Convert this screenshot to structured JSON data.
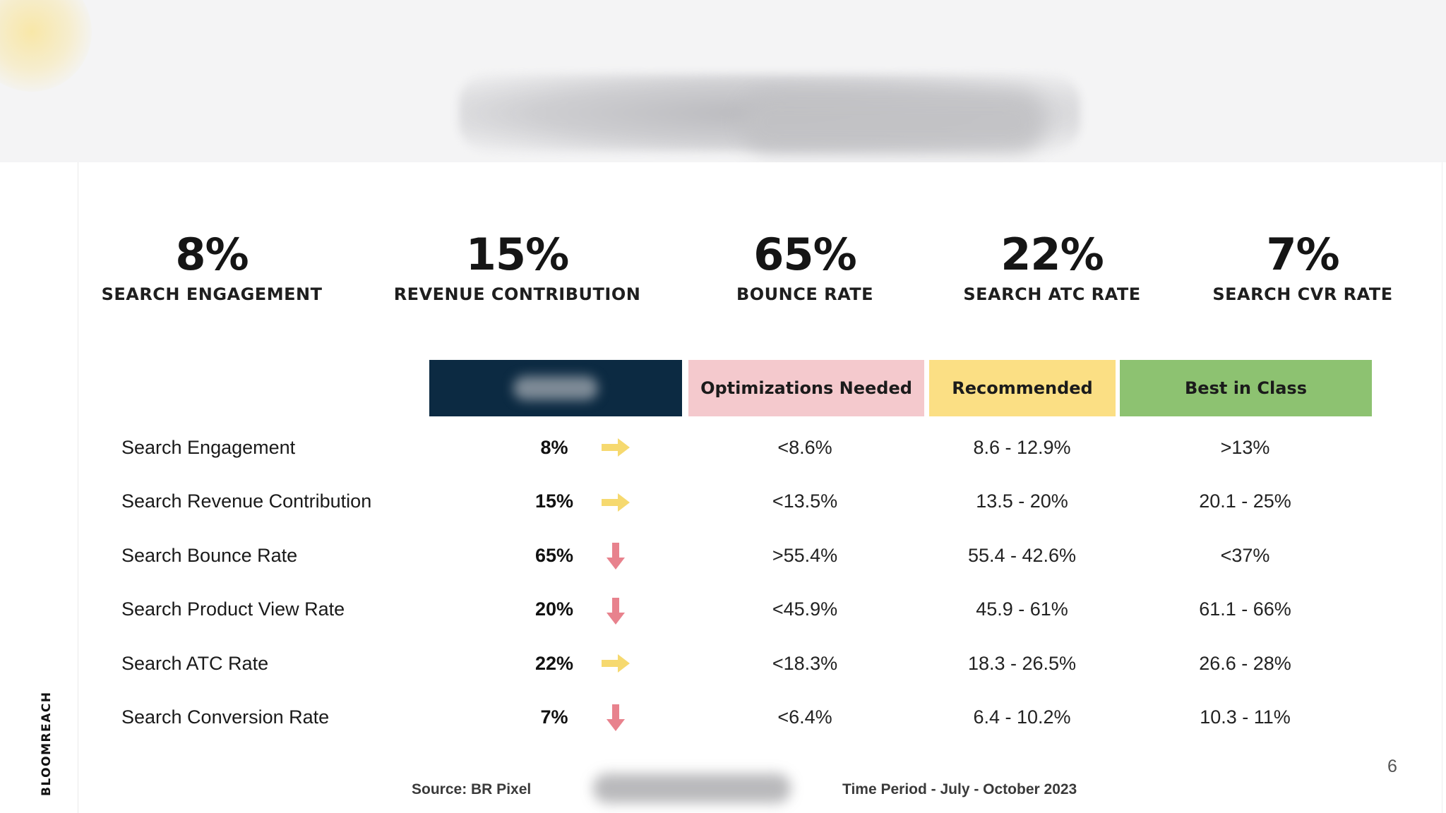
{
  "brand": "BLOOMREACH",
  "page_number": "6",
  "kpis": [
    {
      "value": "8%",
      "label": "SEARCH  ENGAGEMENT"
    },
    {
      "value": "15%",
      "label": "REVENUE CONTRIBUTION"
    },
    {
      "value": "65%",
      "label": "BOUNCE RATE"
    },
    {
      "value": "22%",
      "label": "SEARCH ATC RATE"
    },
    {
      "value": "7%",
      "label": "SEARCH CVR RATE"
    }
  ],
  "columns": {
    "optimizations": "Optimizations Needed",
    "recommended": "Recommended",
    "best": "Best in Class"
  },
  "colors": {
    "dark_header": "#0c2a42",
    "optimizations": "#f4c9cd",
    "recommended": "#fbdf84",
    "best": "#8dc271",
    "arrow_flat": "#f6d96f",
    "arrow_down": "#e8828d"
  },
  "rows": [
    {
      "metric": "Search Engagement",
      "current": "8%",
      "trend": "right-arrow-icon",
      "optimizations": "<8.6%",
      "recommended": "8.6 - 12.9%",
      "best": ">13%"
    },
    {
      "metric": "Search Revenue Contribution",
      "current": "15%",
      "trend": "right-arrow-icon",
      "optimizations": "<13.5%",
      "recommended": "13.5 - 20%",
      "best": "20.1 - 25%"
    },
    {
      "metric": "Search Bounce Rate",
      "current": "65%",
      "trend": "down-arrow-icon",
      "optimizations": ">55.4%",
      "recommended": "55.4 - 42.6%",
      "best": "<37%"
    },
    {
      "metric": "Search Product View Rate",
      "current": "20%",
      "trend": "down-arrow-icon",
      "optimizations": "<45.9%",
      "recommended": "45.9 - 61%",
      "best": "61.1 - 66%"
    },
    {
      "metric": "Search ATC Rate",
      "current": "22%",
      "trend": "right-arrow-icon",
      "optimizations": "<18.3%",
      "recommended": "18.3 - 26.5%",
      "best": "26.6 - 28%"
    },
    {
      "metric": "Search Conversion Rate",
      "current": "7%",
      "trend": "down-arrow-icon",
      "optimizations": "<6.4%",
      "recommended": "6.4 - 10.2%",
      "best": "10.3 - 11%"
    }
  ],
  "footer": {
    "source": "Source: BR Pixel",
    "time_period": "Time Period - July - October 2023"
  }
}
